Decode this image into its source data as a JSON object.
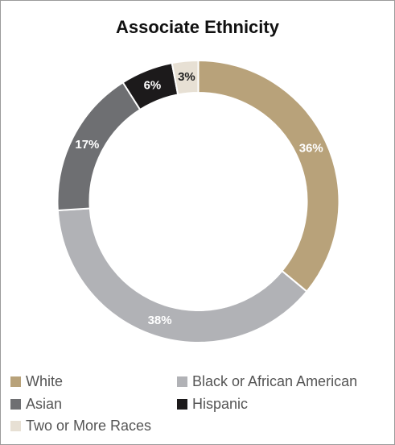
{
  "chart_data": {
    "type": "pie",
    "title": "Associate Ethnicity",
    "donut": true,
    "legend_position": "bottom",
    "slices": [
      {
        "name": "White",
        "value": 36,
        "label": "36%",
        "color": "#b8a27a",
        "label_color": "#ffffff"
      },
      {
        "name": "Black or African American",
        "value": 38,
        "label": "38%",
        "color": "#b1b2b6",
        "label_color": "#ffffff"
      },
      {
        "name": "Asian",
        "value": 17,
        "label": "17%",
        "color": "#6e6f72",
        "label_color": "#ffffff"
      },
      {
        "name": "Hispanic",
        "value": 6,
        "label": "6%",
        "color": "#1c1a1b",
        "label_color": "#ffffff"
      },
      {
        "name": "Two or More Races",
        "value": 3,
        "label": "3%",
        "color": "#e7e0d4",
        "label_color": "#222222"
      }
    ]
  }
}
